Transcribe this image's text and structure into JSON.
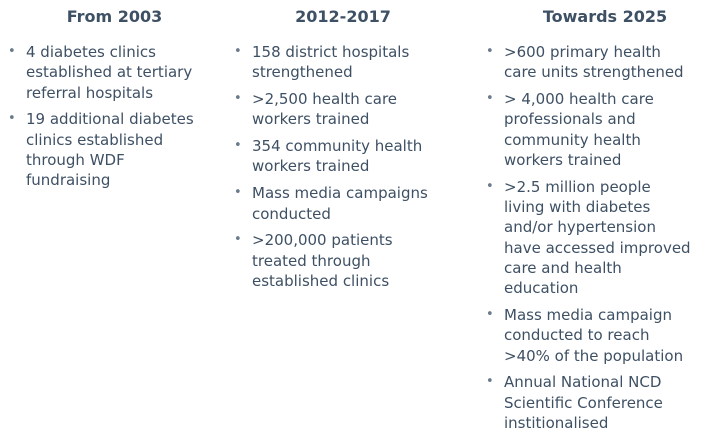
{
  "columns": [
    {
      "heading": "From 2003",
      "items": [
        "4 diabetes clinics\nestablished at tertiary\nreferral hospitals",
        "19 additional diabetes\nclinics established\nthrough WDF\nfundraising"
      ]
    },
    {
      "heading": "2012-2017",
      "items": [
        "158 district hospitals\nstrengthened",
        ">2,500 health care\nworkers trained",
        "354 community health\nworkers trained",
        "Mass media campaigns\nconducted",
        ">200,000 patients\ntreated through\nestablished clinics"
      ]
    },
    {
      "heading": "Towards 2025",
      "items": [
        ">600 primary health\ncare units strengthened",
        "> 4,000 health care\nprofessionals and\ncommunity health\nworkers trained",
        ">2.5 million people\nliving with diabetes\nand/or hypertension\nhave accessed improved\ncare and health\neducation",
        "Mass media campaign\nconducted to reach\n>40% of the population",
        "Annual National NCD\nScientific Conference\ninstitionalised"
      ]
    }
  ]
}
